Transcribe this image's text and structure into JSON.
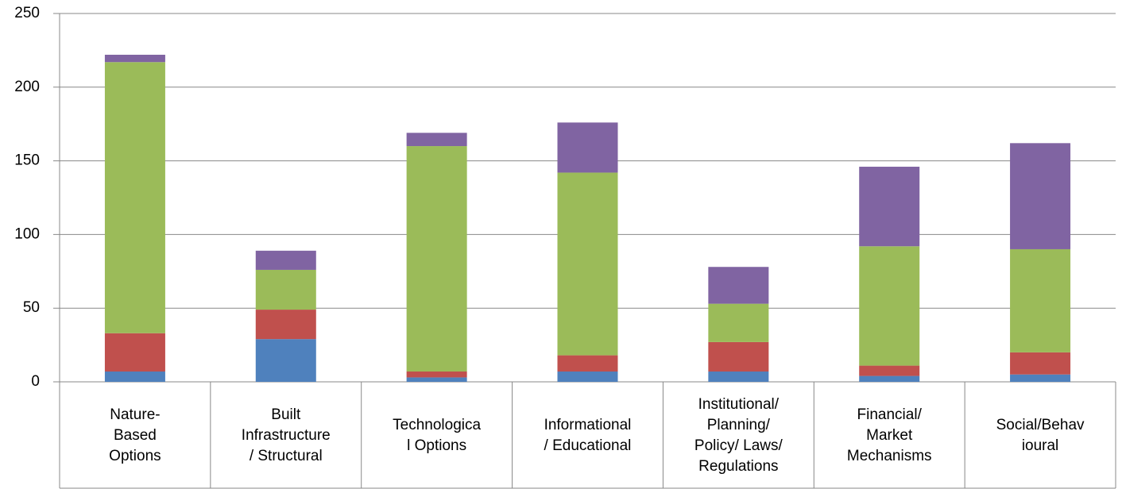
{
  "chart_data": {
    "type": "stacked_bar",
    "categories": [
      "Nature-Based Options",
      "Built Infrastructure / Structural",
      "Technological Options",
      "Informational/ Educational",
      "Institutional/ Planning/ Policy/ Laws/ Regulations",
      "Financial/ Market Mechanisms",
      "Social/Behavioural"
    ],
    "series": [
      {
        "color": "#4f81bd",
        "values": [
          7,
          29,
          3,
          7,
          7,
          4,
          5
        ]
      },
      {
        "color": "#c0504d",
        "values": [
          26,
          20,
          4,
          11,
          20,
          7,
          15
        ]
      },
      {
        "color": "#9bbb59",
        "values": [
          184,
          27,
          153,
          124,
          26,
          81,
          70
        ]
      },
      {
        "color": "#8064a2",
        "values": [
          5,
          13,
          9,
          34,
          25,
          54,
          72
        ]
      }
    ],
    "ylim": [
      0,
      250
    ],
    "yticks": [
      0,
      50,
      100,
      150,
      200,
      250
    ],
    "grid": true
  }
}
